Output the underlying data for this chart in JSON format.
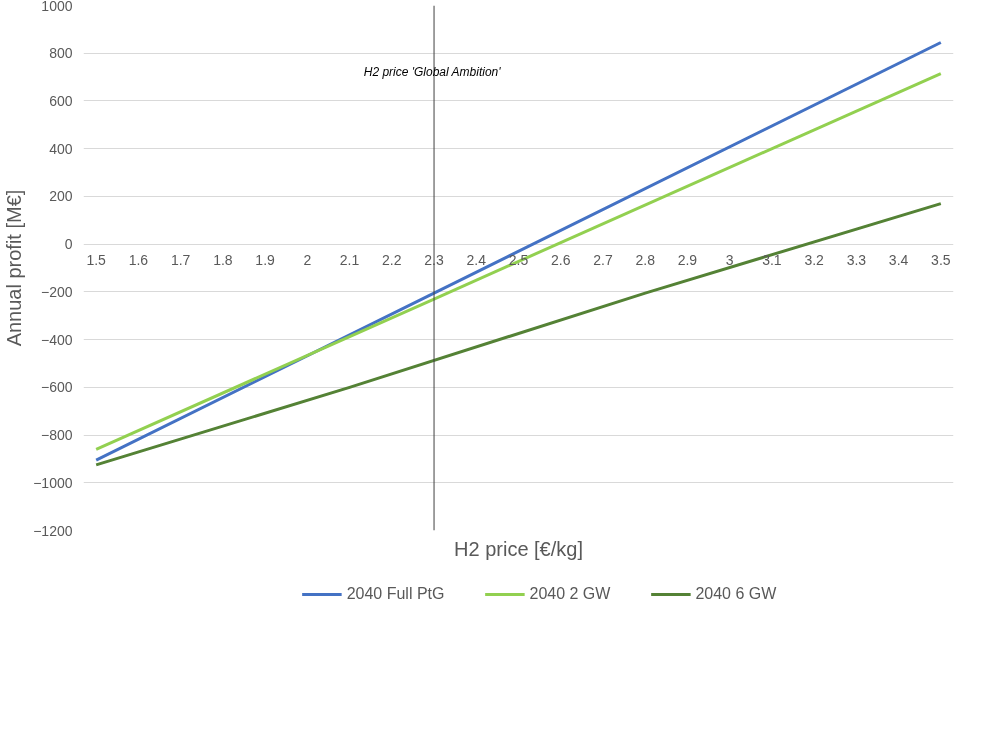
{
  "chart_data": {
    "type": "line",
    "xlabel": "H2 price [€/kg]",
    "ylabel": "Annual profit [M€]",
    "xlim": [
      1.47,
      3.53
    ],
    "xticks": [
      1.5,
      1.6,
      1.7,
      1.8,
      1.9,
      2,
      2.1,
      2.2,
      2.3,
      2.4,
      2.5,
      2.6,
      2.7,
      2.8,
      2.9,
      3,
      3.1,
      3.2,
      3.3,
      3.4,
      3.5
    ],
    "ylim": [
      -1200,
      1000
    ],
    "yticks": [
      -1200,
      -1000,
      -800,
      -600,
      -400,
      -200,
      0,
      200,
      400,
      600,
      800,
      1000
    ],
    "grid": "y",
    "legend": "bottom",
    "marker": "none",
    "line_style": "solid",
    "series": [
      {
        "name": "2040 Full PtG",
        "color": "#4472c4",
        "x": [
          1.5,
          2.3,
          3.5
        ],
        "values": [
          -905,
          -205,
          845
        ]
      },
      {
        "name": "2040 2 GW",
        "color": "#92d050",
        "x": [
          1.5,
          2.3,
          3.5
        ],
        "values": [
          -860,
          -230,
          715
        ]
      },
      {
        "name": "2040 6 GW",
        "color": "#548235",
        "x": [
          1.5,
          2.1,
          2.8,
          3.5
        ],
        "values": [
          -925,
          -600,
          -205,
          170
        ]
      }
    ],
    "ref_lines": [
      {
        "axis": "x",
        "value": 2.3,
        "label": "H2 price  'Global Ambition'",
        "color": "#404040"
      }
    ]
  }
}
